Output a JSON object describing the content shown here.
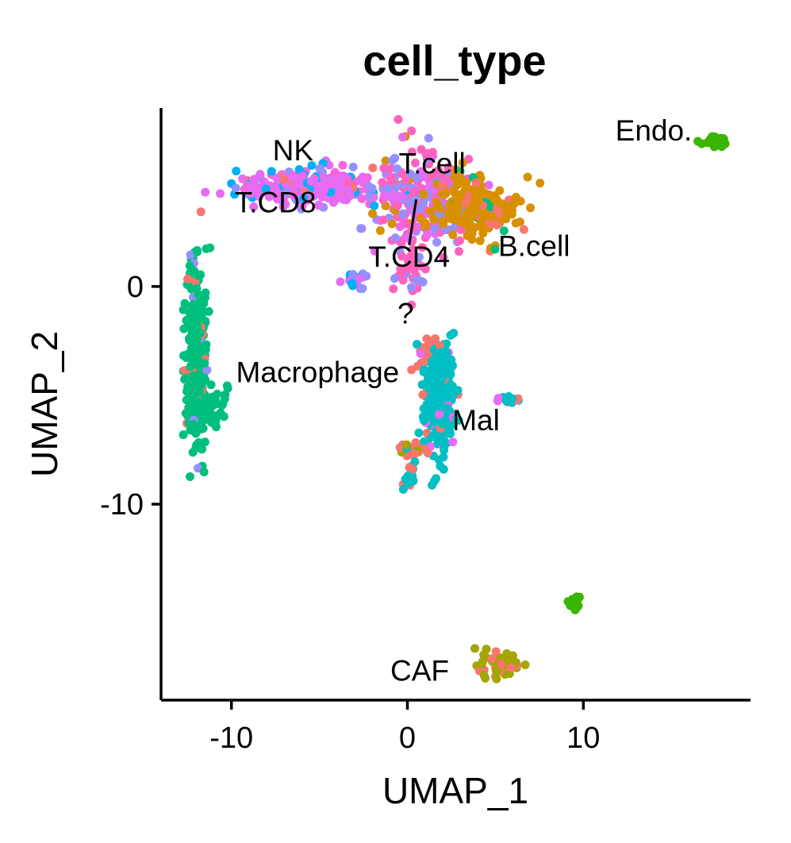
{
  "chart_data": {
    "type": "scatter",
    "title": "cell_type",
    "xlabel": "UMAP_1",
    "ylabel": "UMAP_2",
    "xlim": [
      -14,
      19.5
    ],
    "ylim": [
      -19,
      8.2
    ],
    "xticks": [
      -10,
      0,
      10
    ],
    "xtick_labels": [
      "-10",
      "0",
      "10"
    ],
    "yticks": [
      0,
      -10
    ],
    "ytick_labels": [
      "0",
      "-10"
    ],
    "grid": false,
    "legend": "none",
    "clusters": [
      {
        "id": "nk_tcd8",
        "color": "#E76BF3",
        "cx": -5.5,
        "cy": 4.6,
        "sx": 2.3,
        "sy": 0.45,
        "n": 260,
        "mix": [
          [
            "#E76BF3",
            0.55
          ],
          [
            "#F564E3",
            0.15
          ],
          [
            "#00B0F6",
            0.12
          ],
          [
            "#9590FF",
            0.12
          ],
          [
            "#F8766D",
            0.06
          ]
        ]
      },
      {
        "id": "tcell_tcd4",
        "color": "#FF62BC",
        "cx": 0.8,
        "cy": 3.9,
        "sx": 1.5,
        "sy": 1.2,
        "n": 260,
        "mix": [
          [
            "#FF62BC",
            0.4
          ],
          [
            "#9590FF",
            0.3
          ],
          [
            "#E76BF3",
            0.2
          ],
          [
            "#D89000",
            0.1
          ]
        ]
      },
      {
        "id": "bcell",
        "color": "#D89000",
        "cx": 3.9,
        "cy": 3.6,
        "sx": 1.3,
        "sy": 0.8,
        "n": 190,
        "mix": [
          [
            "#D89000",
            0.85
          ],
          [
            "#F8766D",
            0.08
          ],
          [
            "#00BF7D",
            0.07
          ]
        ]
      },
      {
        "id": "tcell_tail",
        "color": "#FF62BC",
        "cx": 0.2,
        "cy": 0.8,
        "sx": 0.5,
        "sy": 0.8,
        "n": 30,
        "mix": [
          [
            "#FF62BC",
            0.7
          ],
          [
            "#9590FF",
            0.3
          ]
        ]
      },
      {
        "id": "small_blob",
        "color": "#9590FF",
        "cx": -3.0,
        "cy": 0.3,
        "sx": 0.5,
        "sy": 0.25,
        "n": 25,
        "mix": [
          [
            "#9590FF",
            0.4
          ],
          [
            "#E76BF3",
            0.3
          ],
          [
            "#00B0F6",
            0.3
          ]
        ]
      },
      {
        "id": "endo",
        "color": "#39B600",
        "cx": 17.5,
        "cy": 6.7,
        "sx": 0.4,
        "sy": 0.12,
        "n": 40,
        "mix": [
          [
            "#39B600",
            1
          ]
        ]
      },
      {
        "id": "endo2",
        "color": "#39B600",
        "cx": 9.5,
        "cy": -14.5,
        "sx": 0.15,
        "sy": 0.2,
        "n": 20,
        "mix": [
          [
            "#39B600",
            1
          ]
        ]
      },
      {
        "id": "macrophage",
        "color": "#00BF7D",
        "cx": -12.0,
        "cy": -3.2,
        "sx": 0.35,
        "sy": 2.3,
        "n": 320,
        "mix": [
          [
            "#00BF7D",
            0.9
          ],
          [
            "#F8766D",
            0.05
          ],
          [
            "#9590FF",
            0.05
          ]
        ]
      },
      {
        "id": "macrophage_tail",
        "color": "#00BF7D",
        "cx": -11.0,
        "cy": -5.7,
        "sx": 0.5,
        "sy": 0.5,
        "n": 40,
        "mix": [
          [
            "#00BF7D",
            1
          ]
        ]
      },
      {
        "id": "unknown",
        "color": "#F8766D",
        "cx": 1.3,
        "cy": -3.0,
        "sx": 0.4,
        "sy": 0.5,
        "n": 40,
        "mix": [
          [
            "#F8766D",
            0.6
          ],
          [
            "#E76BF3",
            0.2
          ],
          [
            "#00BFC4",
            0.2
          ]
        ]
      },
      {
        "id": "mal",
        "color": "#00BFC4",
        "cx": 1.8,
        "cy": -5.3,
        "sx": 0.5,
        "sy": 1.4,
        "n": 240,
        "mix": [
          [
            "#00BFC4",
            0.85
          ],
          [
            "#F8766D",
            0.08
          ],
          [
            "#E76BF3",
            0.07
          ]
        ]
      },
      {
        "id": "mal_small",
        "color": "#00BFC4",
        "cx": 5.8,
        "cy": -5.2,
        "sx": 0.35,
        "sy": 0.12,
        "n": 20,
        "mix": [
          [
            "#00BFC4",
            0.6
          ],
          [
            "#F8766D",
            0.2
          ],
          [
            "#E76BF3",
            0.2
          ]
        ]
      },
      {
        "id": "mal_low",
        "color": "#F8766D",
        "cx": 0.3,
        "cy": -7.5,
        "sx": 0.4,
        "sy": 0.15,
        "n": 30,
        "mix": [
          [
            "#F8766D",
            0.6
          ],
          [
            "#A3A500",
            0.2
          ],
          [
            "#00BFC4",
            0.2
          ]
        ]
      },
      {
        "id": "mal_bottom",
        "color": "#00BFC4",
        "cx": 0.1,
        "cy": -8.8,
        "sx": 0.2,
        "sy": 0.3,
        "n": 25,
        "mix": [
          [
            "#00BFC4",
            0.6
          ],
          [
            "#F8766D",
            0.4
          ]
        ]
      },
      {
        "id": "caf",
        "color": "#A3A500",
        "cx": 5.3,
        "cy": -17.4,
        "sx": 0.8,
        "sy": 0.3,
        "n": 55,
        "mix": [
          [
            "#A3A500",
            0.7
          ],
          [
            "#F8766D",
            0.3
          ]
        ]
      }
    ],
    "annotations": [
      {
        "text": "Endo.",
        "x": 14.0,
        "y": 6.7
      },
      {
        "text": "NK",
        "x": -6.5,
        "y": 5.8
      },
      {
        "text": "T.CD8",
        "x": -7.5,
        "y": 3.4
      },
      {
        "text": "T.cell",
        "x": 1.4,
        "y": 5.2
      },
      {
        "text": "T.CD4",
        "x": 0.1,
        "y": 0.9
      },
      {
        "text": "B.cell",
        "x": 7.2,
        "y": 1.4
      },
      {
        "text": "?",
        "x": -0.1,
        "y": -1.7
      },
      {
        "text": "Macrophage",
        "x": -5.1,
        "y": -4.4
      },
      {
        "text": "Mal",
        "x": 3.9,
        "y": -6.6
      },
      {
        "text": "CAF",
        "x": 0.7,
        "y": -18.1
      }
    ],
    "leader_line": {
      "x1": 0.5,
      "y1": 4.0,
      "x2": 0.1,
      "y2": 1.9
    }
  }
}
